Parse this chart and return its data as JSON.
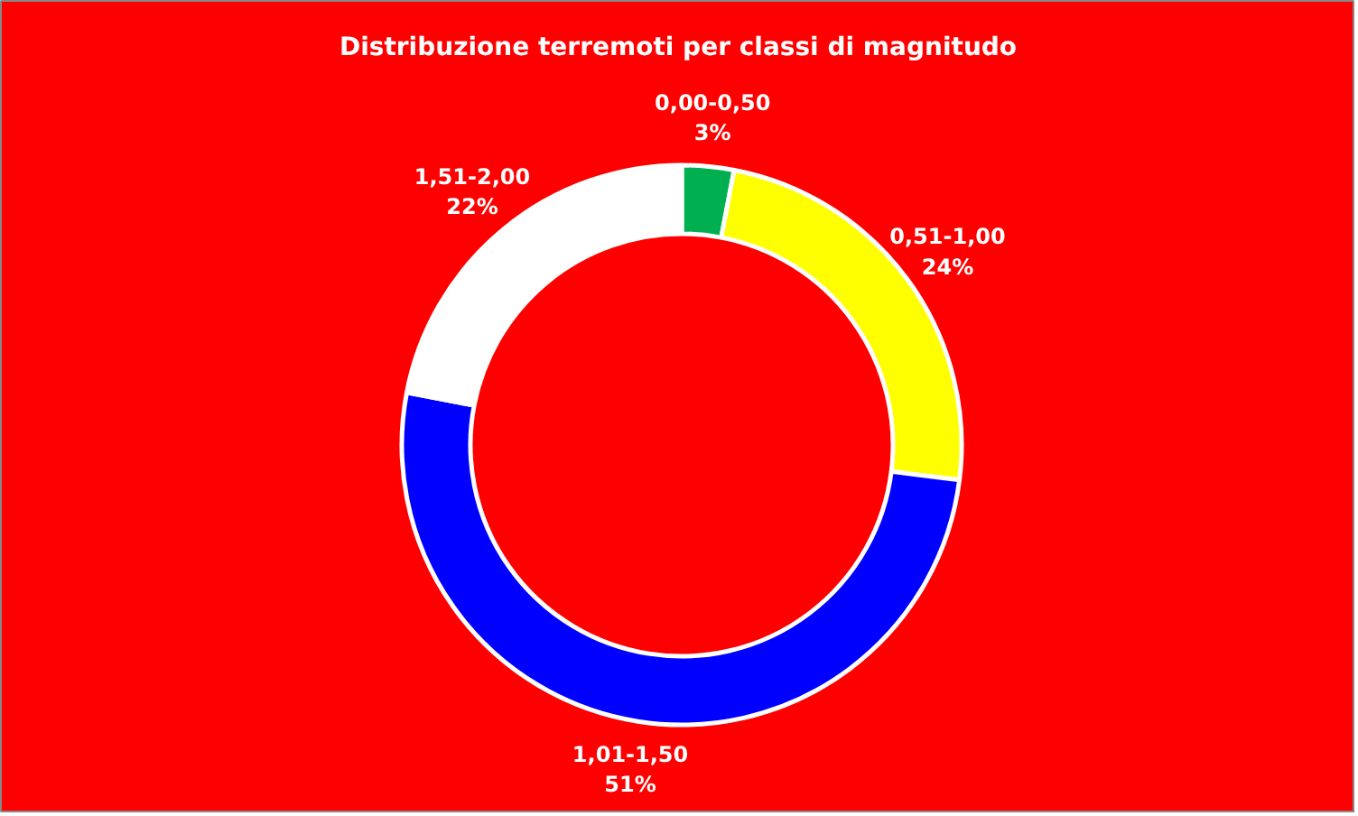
{
  "chart_data": {
    "type": "donut",
    "title": "Distribuzione terremoti per classi di magnitudo",
    "categories": [
      "0,00-0,50",
      "0,51-1,00",
      "1,01-1,50",
      "1,51-2,00"
    ],
    "values": [
      3,
      24,
      51,
      22
    ],
    "value_labels": [
      "3%",
      "24%",
      "51%",
      "22%"
    ],
    "colors": [
      "#00b050",
      "#ffff00",
      "#0000ff",
      "#ffffff"
    ]
  }
}
